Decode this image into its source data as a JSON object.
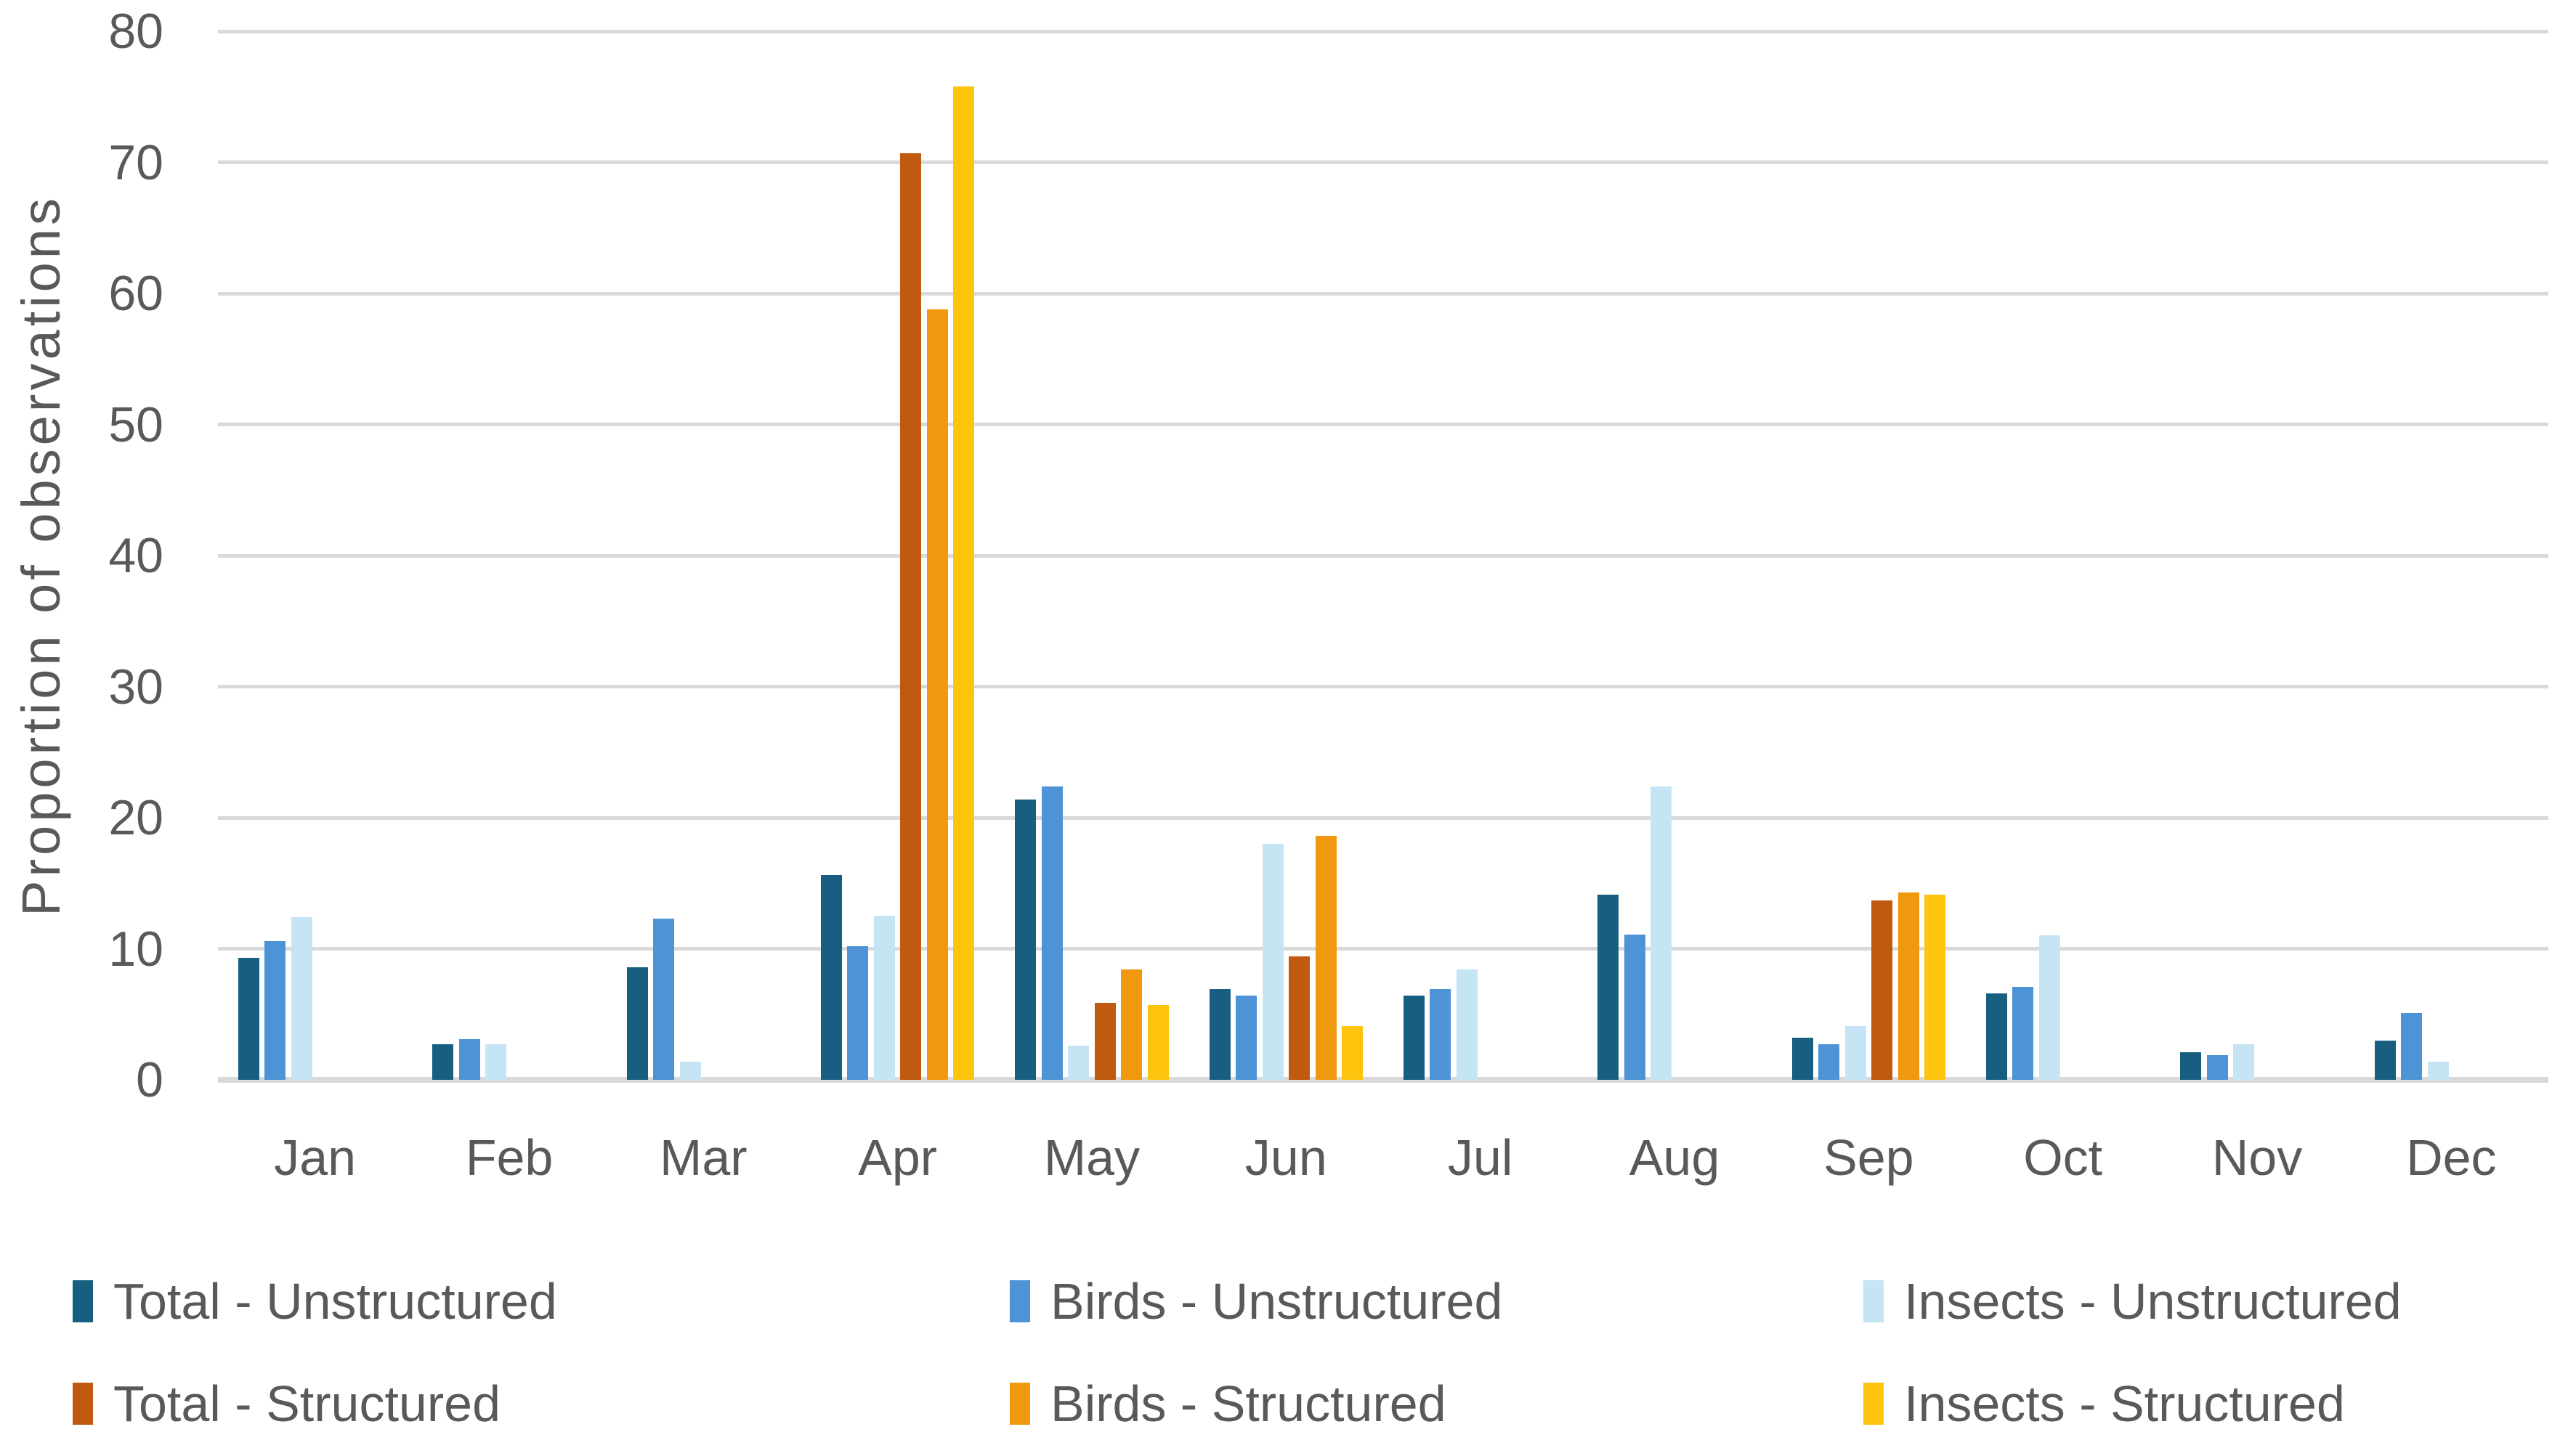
{
  "figure": {
    "background_color": "#FFFFFF",
    "text_color": "#595959",
    "gridline_color": "#D9D9D9"
  },
  "chart_data": {
    "type": "bar",
    "title": "",
    "xlabel": "",
    "ylabel": "Proportion of observations",
    "ylim": [
      0,
      80
    ],
    "ytick_step": 10,
    "yticks": [
      0,
      10,
      20,
      30,
      40,
      50,
      60,
      70,
      80
    ],
    "grid": true,
    "legend_position": "bottom",
    "categories": [
      "Jan",
      "Feb",
      "Mar",
      "Apr",
      "May",
      "Jun",
      "Jul",
      "Aug",
      "Sep",
      "Oct",
      "Nov",
      "Dec"
    ],
    "series": [
      {
        "name": "Total - Unstructured",
        "color": "#175E80",
        "values": [
          9.3,
          2.7,
          8.6,
          15.6,
          21.4,
          6.9,
          6.4,
          14.1,
          3.2,
          6.6,
          2.1,
          3.0
        ]
      },
      {
        "name": "Birds - Unstructured",
        "color": "#4E93D5",
        "values": [
          10.6,
          3.1,
          12.3,
          10.2,
          22.4,
          6.4,
          6.9,
          11.1,
          2.7,
          7.1,
          1.9,
          5.1
        ]
      },
      {
        "name": "Insects - Unstructured",
        "color": "#C5E5F4",
        "values": [
          12.4,
          2.7,
          1.4,
          12.5,
          2.6,
          18.0,
          8.4,
          22.4,
          4.1,
          11.0,
          2.7,
          1.4
        ]
      },
      {
        "name": "Total - Structured",
        "color": "#C05A11",
        "values": [
          0,
          0,
          0,
          70.7,
          5.9,
          9.4,
          0,
          0,
          13.7,
          0,
          0,
          0
        ]
      },
      {
        "name": "Birds - Structured",
        "color": "#F0990F",
        "values": [
          0,
          0,
          0,
          58.8,
          8.4,
          18.6,
          0,
          0,
          14.3,
          0,
          0,
          0
        ]
      },
      {
        "name": "Insects - Structured",
        "color": "#FFC40D",
        "values": [
          0,
          0,
          0,
          75.8,
          5.7,
          4.1,
          0,
          0,
          14.1,
          0,
          0,
          0
        ]
      }
    ]
  }
}
